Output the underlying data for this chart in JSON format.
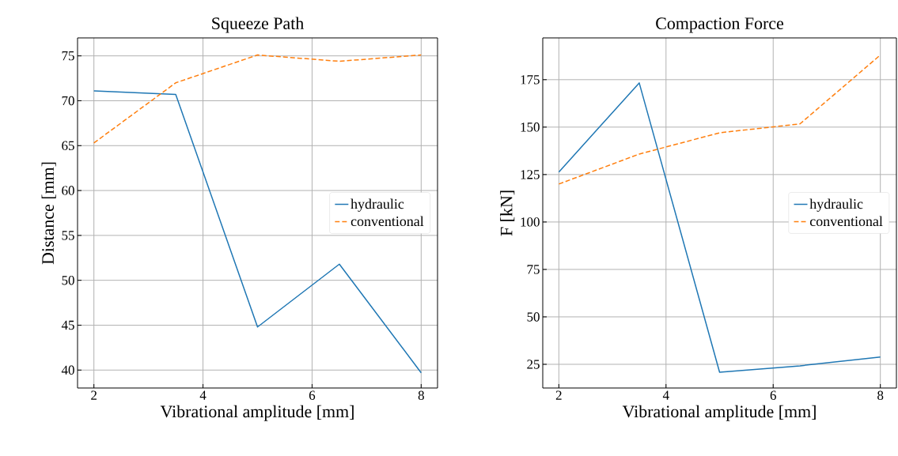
{
  "chart_data": [
    {
      "type": "line",
      "title": "Squeeze Path",
      "xlabel": "Vibrational amplitude [mm]",
      "ylabel": "Distance [mm]",
      "x": [
        2,
        3.5,
        5,
        6.5,
        8
      ],
      "series": [
        {
          "name": "hydraulic",
          "color": "#1f77b4",
          "line_style": "solid",
          "values": [
            71.1,
            70.7,
            44.8,
            51.8,
            39.7
          ]
        },
        {
          "name": "conventional",
          "color": "#ff7f0e",
          "line_style": "dashed",
          "values": [
            65.3,
            72.0,
            75.1,
            74.4,
            75.1
          ]
        }
      ],
      "xlim": [
        1.7,
        8.3
      ],
      "ylim": [
        38.0,
        77.0
      ],
      "xticks": [
        2,
        4,
        6,
        8
      ],
      "yticks": [
        40,
        45,
        50,
        55,
        60,
        65,
        70,
        75
      ],
      "grid": true,
      "legend": "right"
    },
    {
      "type": "line",
      "title": "Compaction Force",
      "xlabel": "Vibrational amplitude [mm]",
      "ylabel": "F [kN]",
      "x": [
        2,
        3.5,
        5,
        6.5,
        8
      ],
      "series": [
        {
          "name": "hydraulic",
          "color": "#1f77b4",
          "line_style": "solid",
          "values": [
            126.3,
            173.3,
            20.8,
            24.2,
            28.8
          ]
        },
        {
          "name": "conventional",
          "color": "#ff7f0e",
          "line_style": "dashed",
          "values": [
            120,
            135.8,
            147,
            151.7,
            188
          ]
        }
      ],
      "xlim": [
        1.7,
        8.3
      ],
      "ylim": [
        12.5,
        197
      ],
      "xticks": [
        2,
        4,
        6,
        8
      ],
      "yticks": [
        25,
        50,
        75,
        100,
        125,
        150,
        175
      ],
      "grid": true,
      "legend": "right"
    }
  ]
}
